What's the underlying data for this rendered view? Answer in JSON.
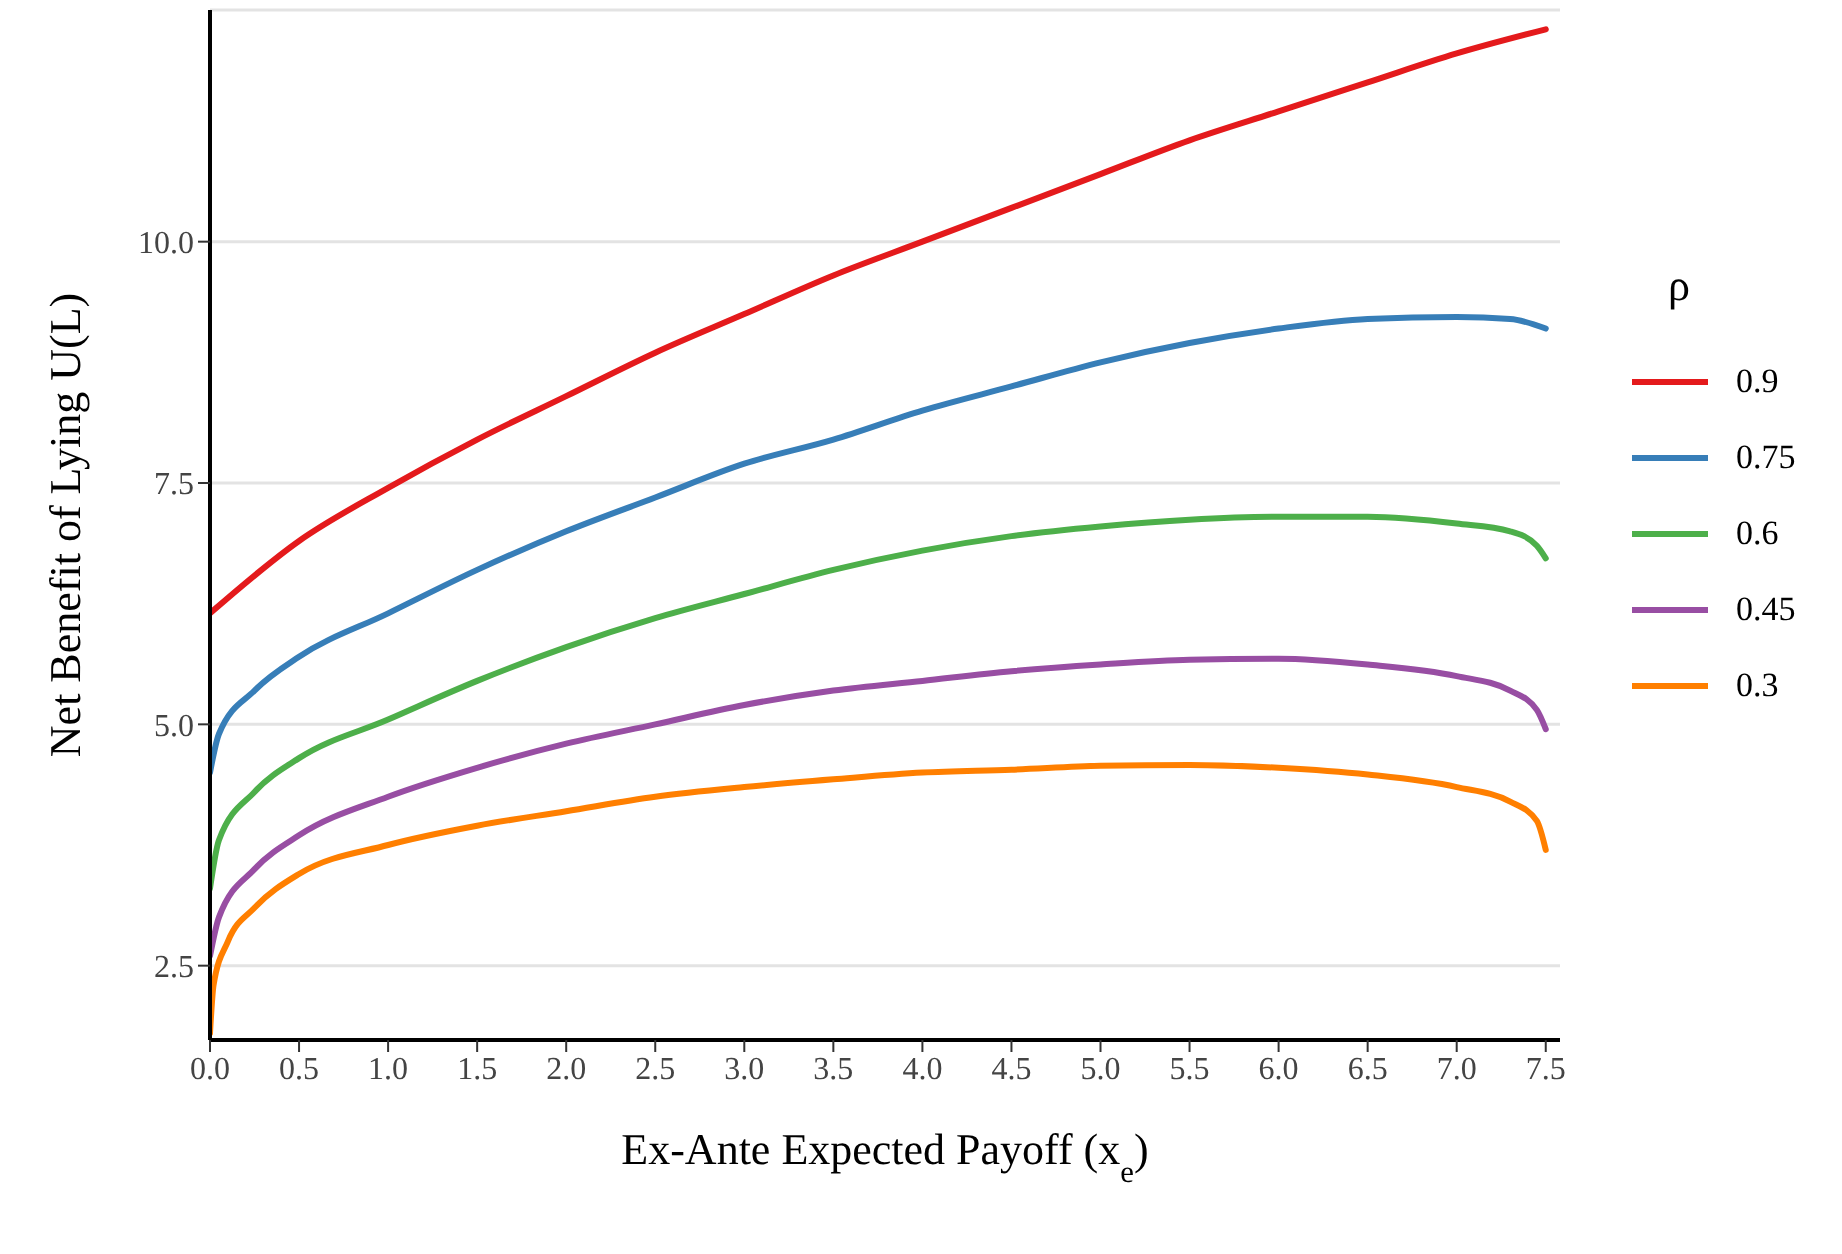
{
  "chart_data": {
    "type": "line",
    "xlabel": "Ex-Ante Expected Payoff (x$_{e}$)",
    "ylabel": "Net Benefit of Lying U(L)",
    "legend_title": "ρ",
    "legend": "right",
    "grid": "y",
    "marker": "none",
    "line_style": "solid",
    "xlim": [
      0,
      7.58
    ],
    "ylim": [
      1.73,
      12.4
    ],
    "xticks": [
      {
        "value": 0,
        "label": "0.0"
      },
      {
        "value": 0.5,
        "label": "0.5"
      },
      {
        "value": 1,
        "label": "1.0"
      },
      {
        "value": 1.5,
        "label": "1.5"
      },
      {
        "value": 2,
        "label": "2.0"
      },
      {
        "value": 2.5,
        "label": "2.5"
      },
      {
        "value": 3,
        "label": "3.0"
      },
      {
        "value": 3.5,
        "label": "3.5"
      },
      {
        "value": 4,
        "label": "4.0"
      },
      {
        "value": 4.5,
        "label": "4.5"
      },
      {
        "value": 5,
        "label": "5.0"
      },
      {
        "value": 5.5,
        "label": "5.5"
      },
      {
        "value": 6,
        "label": "6.0"
      },
      {
        "value": 6.5,
        "label": "6.5"
      },
      {
        "value": 7,
        "label": "7.0"
      },
      {
        "value": 7.5,
        "label": "7.5"
      }
    ],
    "yticks": [
      2.5,
      {
        "value": 5,
        "label": "5.0"
      },
      7.5,
      {
        "value": 10,
        "label": "10.0"
      }
    ],
    "series": [
      {
        "name": "0.9",
        "color": "#e41a1c",
        "x": [
          0,
          0.5,
          1,
          1.5,
          2,
          2.5,
          3,
          3.5,
          4,
          4.5,
          5,
          5.5,
          6,
          6.5,
          7,
          7.5
        ],
        "values": [
          6.15,
          6.9,
          7.45,
          7.95,
          8.4,
          8.85,
          9.25,
          9.65,
          10.0,
          10.35,
          10.7,
          11.05,
          11.35,
          11.65,
          11.95,
          12.2
        ]
      },
      {
        "name": "0.75",
        "color": "#377eb8",
        "x": [
          0,
          0.05,
          0.25,
          0.5,
          1,
          1.5,
          2,
          2.5,
          3,
          3.5,
          4,
          4.5,
          5,
          5.5,
          6,
          6.5,
          7,
          7.3,
          7.5
        ],
        "values": [
          4.5,
          4.9,
          5.35,
          5.7,
          6.15,
          6.6,
          7.0,
          7.35,
          7.7,
          7.95,
          8.25,
          8.5,
          8.75,
          8.95,
          9.1,
          9.2,
          9.22,
          9.2,
          9.1
        ]
      },
      {
        "name": "0.6",
        "color": "#4daf4a",
        "x": [
          0,
          0.05,
          0.25,
          0.5,
          1,
          1.5,
          2,
          2.5,
          3,
          3.5,
          4,
          4.5,
          5,
          5.5,
          6,
          6.5,
          7,
          7.3,
          7.45,
          7.5
        ],
        "values": [
          3.3,
          3.8,
          4.3,
          4.65,
          5.05,
          5.45,
          5.8,
          6.1,
          6.35,
          6.6,
          6.8,
          6.95,
          7.05,
          7.12,
          7.15,
          7.15,
          7.08,
          7.0,
          6.85,
          6.72
        ]
      },
      {
        "name": "0.45",
        "color": "#984ea3",
        "x": [
          0,
          0.05,
          0.25,
          0.5,
          1,
          1.5,
          2,
          2.5,
          3,
          3.5,
          4,
          4.5,
          5,
          5.5,
          6,
          6.5,
          7,
          7.3,
          7.45,
          7.5
        ],
        "values": [
          2.6,
          3.0,
          3.5,
          3.85,
          4.25,
          4.55,
          4.8,
          5.0,
          5.2,
          5.35,
          5.45,
          5.55,
          5.62,
          5.67,
          5.68,
          5.62,
          5.5,
          5.35,
          5.15,
          4.95
        ]
      },
      {
        "name": "0.3",
        "color": "#ff7f00",
        "x": [
          0,
          0.02,
          0.1,
          0.25,
          0.5,
          1,
          1.5,
          2,
          2.5,
          3,
          3.5,
          4,
          4.5,
          5,
          5.5,
          6,
          6.5,
          7,
          7.3,
          7.45,
          7.5
        ],
        "values": [
          1.8,
          2.3,
          2.75,
          3.1,
          3.45,
          3.75,
          3.95,
          4.1,
          4.25,
          4.35,
          4.43,
          4.5,
          4.53,
          4.57,
          4.58,
          4.55,
          4.48,
          4.35,
          4.2,
          4.0,
          3.7
        ]
      }
    ]
  }
}
